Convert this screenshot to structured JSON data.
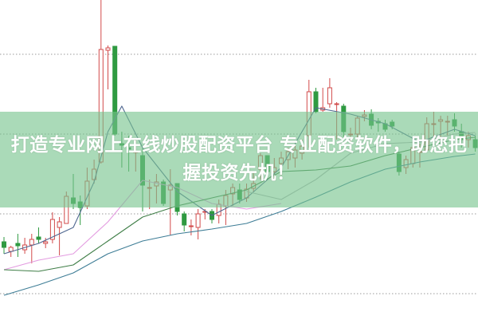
{
  "banner": {
    "text": "打造专业网上在线炒股配资平台 专业配资软件，助您把握投资先机！"
  },
  "colors": {
    "up": "#d24a4a",
    "down": "#2f9a41",
    "grid": "#9a9a9a",
    "banner": "#76c48c"
  },
  "chart_data": {
    "type": "candlestick",
    "title": "",
    "xlabel": "",
    "ylabel": "",
    "ylim": [
      -3.3,
      36.8
    ],
    "grid": true,
    "grid_values": [
      0,
      10,
      20,
      30
    ],
    "candles": [
      [
        6.5,
        7.1,
        5.0,
        5.8
      ],
      [
        5.3,
        6.0,
        4.6,
        5.8
      ],
      [
        6.3,
        7.5,
        4.6,
        6.0
      ],
      [
        5.5,
        7.0,
        5.0,
        6.1
      ],
      [
        6.1,
        7.5,
        3.8,
        6.8
      ],
      [
        7.1,
        8.3,
        6.3,
        6.8
      ],
      [
        6.3,
        7.0,
        5.7,
        6.5
      ],
      [
        6.8,
        10.2,
        6.3,
        9.3
      ],
      [
        8.3,
        9.6,
        4.8,
        9.0
      ],
      [
        8.8,
        12.8,
        8.8,
        12.2
      ],
      [
        12.0,
        15.0,
        10.6,
        11.3
      ],
      [
        11.5,
        12.3,
        8.6,
        10.8
      ],
      [
        11.0,
        15.8,
        10.6,
        14.1
      ],
      [
        14.3,
        16.8,
        13.8,
        15.6
      ],
      [
        16.5,
        36.8,
        16.3,
        30.6
      ],
      [
        30.5,
        31.1,
        25.6,
        30.8
      ],
      [
        31.0,
        31.0,
        19.8,
        20.0
      ],
      [
        18.8,
        20.3,
        15.8,
        18.6
      ],
      [
        18.3,
        19.8,
        15.3,
        18.1
      ],
      [
        17.8,
        19.3,
        15.3,
        17.8
      ],
      [
        17.3,
        18.3,
        10.3,
        13.6
      ],
      [
        13.3,
        14.3,
        10.6,
        13.3
      ],
      [
        13.5,
        15.0,
        11.3,
        14.0
      ],
      [
        14.0,
        14.3,
        11.0,
        11.3
      ],
      [
        13.0,
        15.6,
        7.3,
        13.6
      ],
      [
        13.8,
        13.8,
        9.8,
        10.3
      ],
      [
        10.0,
        10.3,
        7.8,
        8.6
      ],
      [
        8.5,
        9.3,
        7.3,
        8.5
      ],
      [
        8.3,
        10.6,
        6.8,
        10.0
      ],
      [
        10.3,
        10.6,
        9.3,
        10.3
      ],
      [
        10.3,
        10.6,
        8.8,
        9.3
      ],
      [
        9.8,
        11.8,
        8.8,
        11.2
      ],
      [
        11.0,
        13.0,
        8.6,
        12.3
      ],
      [
        12.5,
        13.8,
        11.0,
        13.3
      ],
      [
        13.0,
        13.8,
        11.3,
        11.8
      ],
      [
        12.0,
        13.8,
        11.5,
        13.1
      ],
      [
        13.2,
        15.3,
        12.8,
        13.8
      ],
      [
        15.6,
        17.6,
        14.3,
        17.3
      ],
      [
        17.3,
        17.3,
        15.0,
        15.3
      ],
      [
        15.3,
        17.0,
        14.3,
        15.8
      ],
      [
        16.3,
        17.8,
        14.8,
        17.0
      ],
      [
        16.8,
        18.3,
        15.6,
        17.8
      ],
      [
        17.0,
        18.8,
        15.8,
        18.0
      ],
      [
        17.6,
        19.3,
        16.8,
        18.5
      ],
      [
        19.8,
        26.8,
        18.3,
        25.3
      ],
      [
        25.3,
        25.8,
        22.6,
        22.8
      ],
      [
        23.0,
        25.8,
        22.8,
        23.3
      ],
      [
        23.8,
        27.0,
        23.3,
        25.8
      ],
      [
        23.8,
        24.0,
        19.3,
        23.8
      ],
      [
        23.5,
        23.8,
        19.3,
        20.3
      ],
      [
        20.0,
        20.8,
        18.8,
        20.0
      ],
      [
        20.0,
        22.3,
        19.3,
        22.0
      ],
      [
        22.2,
        23.0,
        21.6,
        22.4
      ],
      [
        22.5,
        23.1,
        20.6,
        21.1
      ],
      [
        21.6,
        22.0,
        20.3,
        21.4
      ],
      [
        21.3,
        21.8,
        20.3,
        20.6
      ],
      [
        21.5,
        21.8,
        20.6,
        21.0
      ],
      [
        17.5,
        17.8,
        14.8,
        15.3
      ],
      [
        15.8,
        17.3,
        15.0,
        16.8
      ],
      [
        16.3,
        18.6,
        15.8,
        18.3
      ],
      [
        17.8,
        18.8,
        15.8,
        17.8
      ],
      [
        18.0,
        22.1,
        17.8,
        21.3
      ],
      [
        21.3,
        22.8,
        18.8,
        21.3
      ],
      [
        21.6,
        22.3,
        19.3,
        21.8
      ],
      [
        21.6,
        22.3,
        19.8,
        21.6
      ],
      [
        21.8,
        22.6,
        20.3,
        21.0
      ],
      [
        20.3,
        21.3,
        18.3,
        19.3
      ],
      [
        19.3,
        20.3,
        18.3,
        19.8
      ],
      [
        19.3,
        19.8,
        17.8,
        18.3
      ]
    ],
    "candle_format": [
      "open",
      "high",
      "low",
      "close"
    ],
    "moving_averages": [
      {
        "color": "#4f6790",
        "points": [
          [
            0,
            5.0
          ],
          [
            5,
            6.3
          ],
          [
            10,
            8.3
          ],
          [
            13,
            14.0
          ],
          [
            15,
            20.3
          ],
          [
            17,
            23.5
          ],
          [
            20,
            18.3
          ],
          [
            25,
            12.8
          ],
          [
            30,
            9.8
          ],
          [
            35,
            12.0
          ],
          [
            40,
            15.8
          ],
          [
            45,
            23.3
          ],
          [
            50,
            22.5
          ],
          [
            55,
            21.3
          ],
          [
            60,
            19.0
          ],
          [
            65,
            20.6
          ],
          [
            68,
            19.8
          ]
        ]
      },
      {
        "color": "#e39be0",
        "points": [
          [
            0,
            3.0
          ],
          [
            5,
            4.2
          ],
          [
            10,
            5.0
          ],
          [
            15,
            9.0
          ],
          [
            20,
            14.2
          ],
          [
            25,
            13.3
          ],
          [
            30,
            11.3
          ],
          [
            35,
            10.6
          ],
          [
            40,
            11.3
          ]
        ]
      },
      {
        "color": "#b4b4b8",
        "points": [
          [
            35,
            12.8
          ],
          [
            40,
            11.8
          ],
          [
            45,
            14.3
          ],
          [
            50,
            17.6
          ],
          [
            55,
            18.8
          ],
          [
            60,
            19.0
          ],
          [
            65,
            20.0
          ],
          [
            68,
            20.2
          ]
        ]
      },
      {
        "color": "#3f7e47",
        "points": [
          [
            0,
            3.0
          ],
          [
            5,
            2.8
          ],
          [
            10,
            3.6
          ],
          [
            15,
            6.6
          ],
          [
            20,
            9.6
          ],
          [
            25,
            11.0
          ],
          [
            30,
            12.0
          ],
          [
            35,
            13.0
          ],
          [
            40,
            15.3
          ],
          [
            45,
            15.5
          ],
          [
            50,
            16.0
          ],
          [
            55,
            17.3
          ],
          [
            60,
            18.3
          ],
          [
            65,
            19.3
          ],
          [
            68,
            19.6
          ]
        ]
      },
      {
        "color": "#3e7d96",
        "points": [
          [
            0,
            -0.2
          ],
          [
            5,
            1.1
          ],
          [
            10,
            2.6
          ],
          [
            15,
            5.0
          ],
          [
            20,
            6.6
          ],
          [
            25,
            7.5
          ],
          [
            30,
            8.1
          ],
          [
            35,
            8.8
          ],
          [
            40,
            10.3
          ],
          [
            45,
            12.1
          ],
          [
            50,
            14.0
          ],
          [
            55,
            15.6
          ],
          [
            60,
            16.5
          ],
          [
            65,
            17.2
          ],
          [
            68,
            17.5
          ]
        ]
      }
    ]
  }
}
